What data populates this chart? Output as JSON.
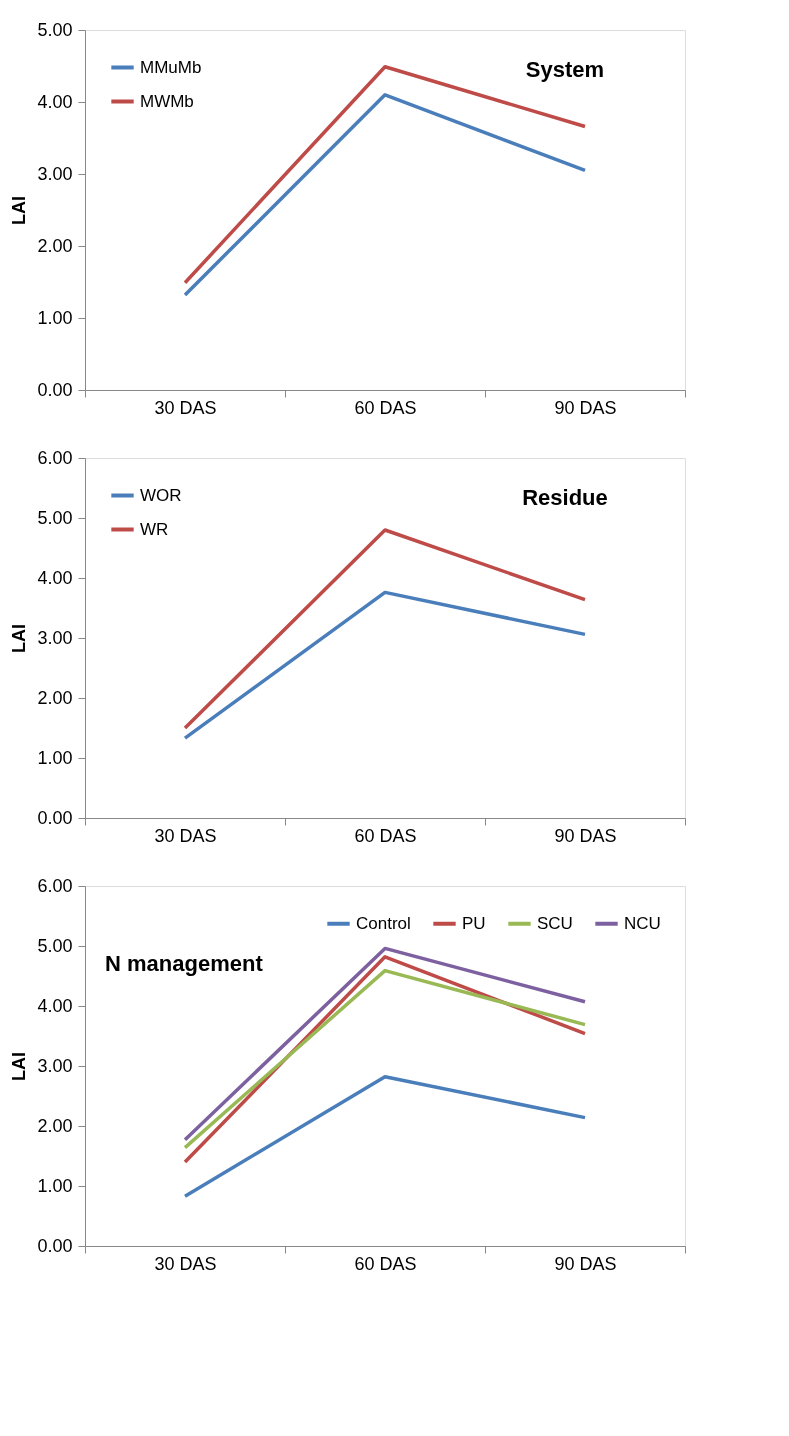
{
  "chart_data": [
    {
      "type": "line",
      "title": "System",
      "ylabel": "LAI",
      "categories": [
        "30 DAS",
        "60 DAS",
        "90 DAS"
      ],
      "ylim": [
        0,
        5
      ],
      "yticks": [
        {
          "value": 0,
          "label": "0.00"
        },
        {
          "value": 1,
          "label": "1.00"
        },
        {
          "value": 2,
          "label": "2.00"
        },
        {
          "value": 3,
          "label": "3.00"
        },
        {
          "value": 4,
          "label": "4.00"
        },
        {
          "value": 5,
          "label": "5.00"
        }
      ],
      "grid": false,
      "legend": "top left",
      "marker": "none",
      "series": [
        {
          "name": "MMuMb",
          "color": "#4a7ebb",
          "values": [
            1.32,
            4.1,
            3.05
          ]
        },
        {
          "name": "MWMb",
          "color": "#be4b48",
          "values": [
            1.49,
            4.49,
            3.66
          ]
        }
      ]
    },
    {
      "type": "line",
      "title": "Residue",
      "ylabel": "LAI",
      "categories": [
        "30 DAS",
        "60 DAS",
        "90 DAS"
      ],
      "ylim": [
        0,
        6
      ],
      "yticks": [
        {
          "value": 0,
          "label": "0.00"
        },
        {
          "value": 1,
          "label": "1.00"
        },
        {
          "value": 2,
          "label": "2.00"
        },
        {
          "value": 3,
          "label": "3.00"
        },
        {
          "value": 4,
          "label": "4.00"
        },
        {
          "value": 5,
          "label": "5.00"
        },
        {
          "value": 6,
          "label": "6.00"
        }
      ],
      "grid": false,
      "legend": "top left",
      "marker": "none",
      "series": [
        {
          "name": "WOR",
          "color": "#4a7ebb",
          "values": [
            1.33,
            3.76,
            3.06
          ]
        },
        {
          "name": "WR",
          "color": "#be4b48",
          "values": [
            1.5,
            4.8,
            3.64
          ]
        }
      ]
    },
    {
      "type": "line",
      "title": "N management",
      "ylabel": "LAI",
      "categories": [
        "30 DAS",
        "60 DAS",
        "90 DAS"
      ],
      "ylim": [
        0,
        6
      ],
      "yticks": [
        {
          "value": 0,
          "label": "0.00"
        },
        {
          "value": 1,
          "label": "1.00"
        },
        {
          "value": 2,
          "label": "2.00"
        },
        {
          "value": 3,
          "label": "3.00"
        },
        {
          "value": 4,
          "label": "4.00"
        },
        {
          "value": 5,
          "label": "5.00"
        },
        {
          "value": 6,
          "label": "6.00"
        }
      ],
      "grid": false,
      "legend": "top right",
      "marker": "none",
      "series": [
        {
          "name": "Control",
          "color": "#4a7ebb",
          "values": [
            0.83,
            2.82,
            2.14
          ]
        },
        {
          "name": "PU",
          "color": "#be4b48",
          "values": [
            1.4,
            4.82,
            3.54
          ]
        },
        {
          "name": "SCU",
          "color": "#98b954",
          "values": [
            1.64,
            4.59,
            3.69
          ]
        },
        {
          "name": "NCU",
          "color": "#7d60a0",
          "values": [
            1.77,
            4.96,
            4.07
          ]
        }
      ]
    }
  ]
}
